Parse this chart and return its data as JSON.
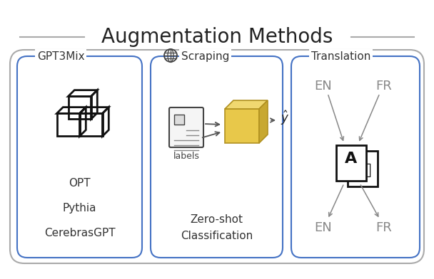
{
  "title": "Augmentation Methods",
  "bg_color": "#ffffff",
  "outer_box_ec": "#aaaaaa",
  "outer_box_fc": "#ffffff",
  "inner_box_ec": "#4472c4",
  "inner_box_fc": "#ffffff",
  "box1_label": "GPT3Mix",
  "box2_label": "Scraping",
  "box3_label": "Translation",
  "box1_items": [
    "OPT",
    "Pythia",
    "CerebrasGPT"
  ],
  "box2_bottom_label": "Zero-shot\nClassification",
  "box3_top": [
    "EN",
    "FR"
  ],
  "box3_bottom": [
    "EN",
    "FR"
  ],
  "text_color": "#333333",
  "gray_text_color": "#888888",
  "cube_front": "#e8c84a",
  "cube_top": "#f0d870",
  "cube_right": "#c8a830",
  "cube_edge": "#b09020",
  "arrow_color": "#555555",
  "title_fontsize": 20,
  "label_fontsize": 11,
  "item_fontsize": 11
}
